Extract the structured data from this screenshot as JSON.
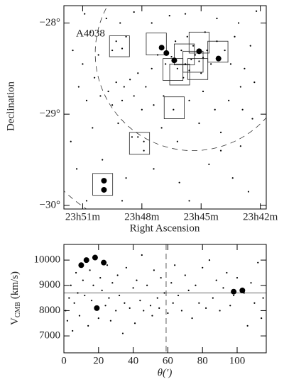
{
  "chart_data": [
    {
      "type": "scatter",
      "ylabel": "Declination",
      "xlabel": "Right Ascension",
      "annotation": "A4038",
      "xlim": [
        51.95,
        41.7
      ],
      "ylim": [
        -30.04,
        -27.81
      ],
      "xticks": [
        {
          "value": 51,
          "label": "23h51m"
        },
        {
          "value": 48,
          "label": "23h48m"
        },
        {
          "value": 45,
          "label": "23h45m"
        },
        {
          "value": 42,
          "label": "23h42m"
        }
      ],
      "yticks": [
        {
          "value": -30,
          "label": "−30°"
        },
        {
          "value": -29,
          "label": "−29°"
        },
        {
          "value": -28,
          "label": "−28°"
        }
      ],
      "series": [
        {
          "marker": "dot",
          "color": "#000000",
          "x": [
            45.5,
            45.3,
            45.8,
            46.0,
            45.1,
            44.9,
            45.6,
            46.2,
            45.4,
            44.7,
            46.5,
            45.0,
            44.5,
            46.8,
            45.9,
            44.2,
            43.8,
            43.5,
            47.2,
            47.5,
            46.3,
            45.7,
            44.8,
            43.3,
            42.5,
            42.8,
            42.3,
            43.0,
            48.2,
            48.6,
            48.9,
            49.3,
            49.7,
            50.1,
            50.4,
            49.0,
            48.4,
            47.8,
            47.4,
            49.5,
            50.8,
            51.2,
            48.0,
            46.9,
            46.4,
            45.6,
            44.9,
            44.3,
            43.6,
            42.9,
            49.3,
            49.0,
            48.8,
            49.5,
            49.1,
            50.9,
            49.8,
            48.4,
            47.5,
            46.6,
            45.8,
            44.2,
            43.1,
            42.2,
            50.6,
            51.5,
            51.0,
            50.2,
            51.6,
            50.5,
            49.2,
            48.2,
            47.0,
            46.2,
            45.1,
            44.0,
            43.0,
            42.4,
            51.3,
            50.0,
            48.8,
            47.4,
            46.1,
            44.6,
            43.4,
            42.6,
            50.8,
            49.0,
            45.6,
            44.0,
            47.9,
            48.5,
            47.9
          ],
          "values": [
            -28.4,
            -28.35,
            -28.45,
            -28.3,
            -28.42,
            -28.38,
            -28.52,
            -28.5,
            -28.25,
            -28.3,
            -28.37,
            -28.55,
            -28.45,
            -28.45,
            -28.6,
            -28.2,
            -28.3,
            -28.45,
            -28.35,
            -28.5,
            -28.2,
            -28.15,
            -28.1,
            -28.15,
            -28.25,
            -28.5,
            -28.65,
            -28.7,
            -28.55,
            -28.62,
            -28.7,
            -28.65,
            -28.75,
            -28.8,
            -28.6,
            -28.85,
            -28.8,
            -28.7,
            -28.9,
            -28.9,
            -28.85,
            -28.7,
            -28.95,
            -28.8,
            -28.95,
            -28.85,
            -28.75,
            -28.95,
            -28.85,
            -28.95,
            -28.2,
            -28.28,
            -28.15,
            -28.3,
            -28.0,
            -27.9,
            -27.95,
            -27.88,
            -28.0,
            -27.92,
            -27.9,
            -27.95,
            -28.0,
            -27.87,
            -28.1,
            -28.3,
            -28.45,
            -28.35,
            -29.3,
            -29.15,
            -29.1,
            -29.25,
            -29.15,
            -29.3,
            -29.1,
            -29.2,
            -29.35,
            -29.05,
            -29.6,
            -29.5,
            -29.7,
            -29.6,
            -29.75,
            -29.55,
            -29.7,
            -29.85,
            -29.95,
            -29.95,
            -29.95,
            -29.4,
            -29.4,
            -29.25,
            -29.3
          ]
        },
        {
          "marker": "big",
          "color": "#000000",
          "x": [
            47.0,
            46.76,
            46.36,
            45.1,
            44.12,
            49.92,
            49.92
          ],
          "values": [
            -28.27,
            -28.33,
            -28.41,
            -28.31,
            -28.39,
            -29.73,
            -29.83
          ]
        }
      ],
      "boxes": [
        {
          "x": [
            49.64,
            48.63
          ],
          "y": [
            -28.14,
            -28.37
          ]
        },
        {
          "x": [
            47.78,
            46.76
          ],
          "y": [
            -28.11,
            -28.35
          ]
        },
        {
          "x": [
            45.61,
            44.59
          ],
          "y": [
            -28.1,
            -28.33
          ]
        },
        {
          "x": [
            44.66,
            43.64
          ],
          "y": [
            -28.2,
            -28.43
          ]
        },
        {
          "x": [
            46.93,
            45.92
          ],
          "y": [
            -28.39,
            -28.63
          ]
        },
        {
          "x": [
            46.36,
            45.34
          ],
          "y": [
            -28.23,
            -28.46
          ]
        },
        {
          "x": [
            45.92,
            44.9
          ],
          "y": [
            -28.31,
            -28.54
          ]
        },
        {
          "x": [
            45.68,
            44.66
          ],
          "y": [
            -28.39,
            -28.62
          ]
        },
        {
          "x": [
            46.59,
            45.58
          ],
          "y": [
            -28.45,
            -28.68
          ]
        },
        {
          "x": [
            46.87,
            45.85
          ],
          "y": [
            -28.81,
            -29.05
          ]
        },
        {
          "x": [
            48.63,
            47.61
          ],
          "y": [
            -29.2,
            -29.44
          ]
        },
        {
          "x": [
            50.49,
            49.48
          ],
          "y": [
            -29.65,
            -29.89
          ]
        }
      ],
      "circles": [
        {
          "x": 45.41,
          "y": -28.33,
          "r": 1.07
        },
        {
          "x": 45.41,
          "y": -28.33,
          "r": 2.07
        }
      ]
    },
    {
      "type": "scatter",
      "ylabel": {
        "main": "V",
        "sub": "CMB",
        "unit": " (km/s)"
      },
      "xlabel": "θ(′)",
      "xlim": [
        0,
        116.8
      ],
      "ylim": [
        6330,
        10620
      ],
      "xticks": [
        0,
        20,
        40,
        60,
        80,
        100
      ],
      "yticks": [
        7000,
        8000,
        9000,
        10000
      ],
      "hlines": [
        8700
      ],
      "vlines": [
        59
      ],
      "series": [
        {
          "marker": "dot",
          "color": "#000000",
          "x": [
            1,
            2,
            3,
            4,
            5,
            6,
            7,
            8,
            9,
            11,
            12,
            14,
            15,
            16,
            17,
            20,
            21,
            22,
            24,
            25,
            26,
            27,
            28,
            30,
            31,
            32,
            34,
            35,
            36,
            38,
            40,
            41,
            42,
            44,
            45,
            46,
            48,
            50,
            51,
            52,
            54,
            55,
            56,
            58,
            60,
            62,
            63,
            64,
            66,
            68,
            70,
            72,
            74,
            76,
            78,
            80,
            82,
            84,
            86,
            88,
            90,
            92,
            94,
            96,
            98,
            100,
            104,
            106,
            108,
            110,
            112,
            114,
            115
          ],
          "values": [
            8000,
            7600,
            8500,
            9000,
            7200,
            8300,
            9500,
            8700,
            7800,
            9200,
            8600,
            7400,
            9600,
            8400,
            9000,
            7700,
            9300,
            8800,
            8200,
            9800,
            8500,
            7600,
            9100,
            8000,
            9400,
            8600,
            7100,
            8300,
            9700,
            8100,
            8900,
            7500,
            9200,
            8400,
            10200,
            8000,
            9000,
            8200,
            7800,
            9600,
            8500,
            8100,
            9300,
            8700,
            7900,
            9100,
            8300,
            9800,
            8600,
            8000,
            9400,
            8800,
            7700,
            9000,
            8300,
            9700,
            8100,
            10000,
            8500,
            9200,
            8000,
            8900,
            9500,
            8200,
            8600,
            9300,
            8700,
            7400,
            9100,
            8300,
            9900,
            7700,
            8500
          ]
        },
        {
          "marker": "big",
          "color": "#000000",
          "x": [
            10,
            13,
            18,
            23,
            19,
            98,
            103
          ],
          "values": [
            9800,
            10000,
            10100,
            9900,
            8100,
            8750,
            8800
          ]
        }
      ]
    }
  ]
}
